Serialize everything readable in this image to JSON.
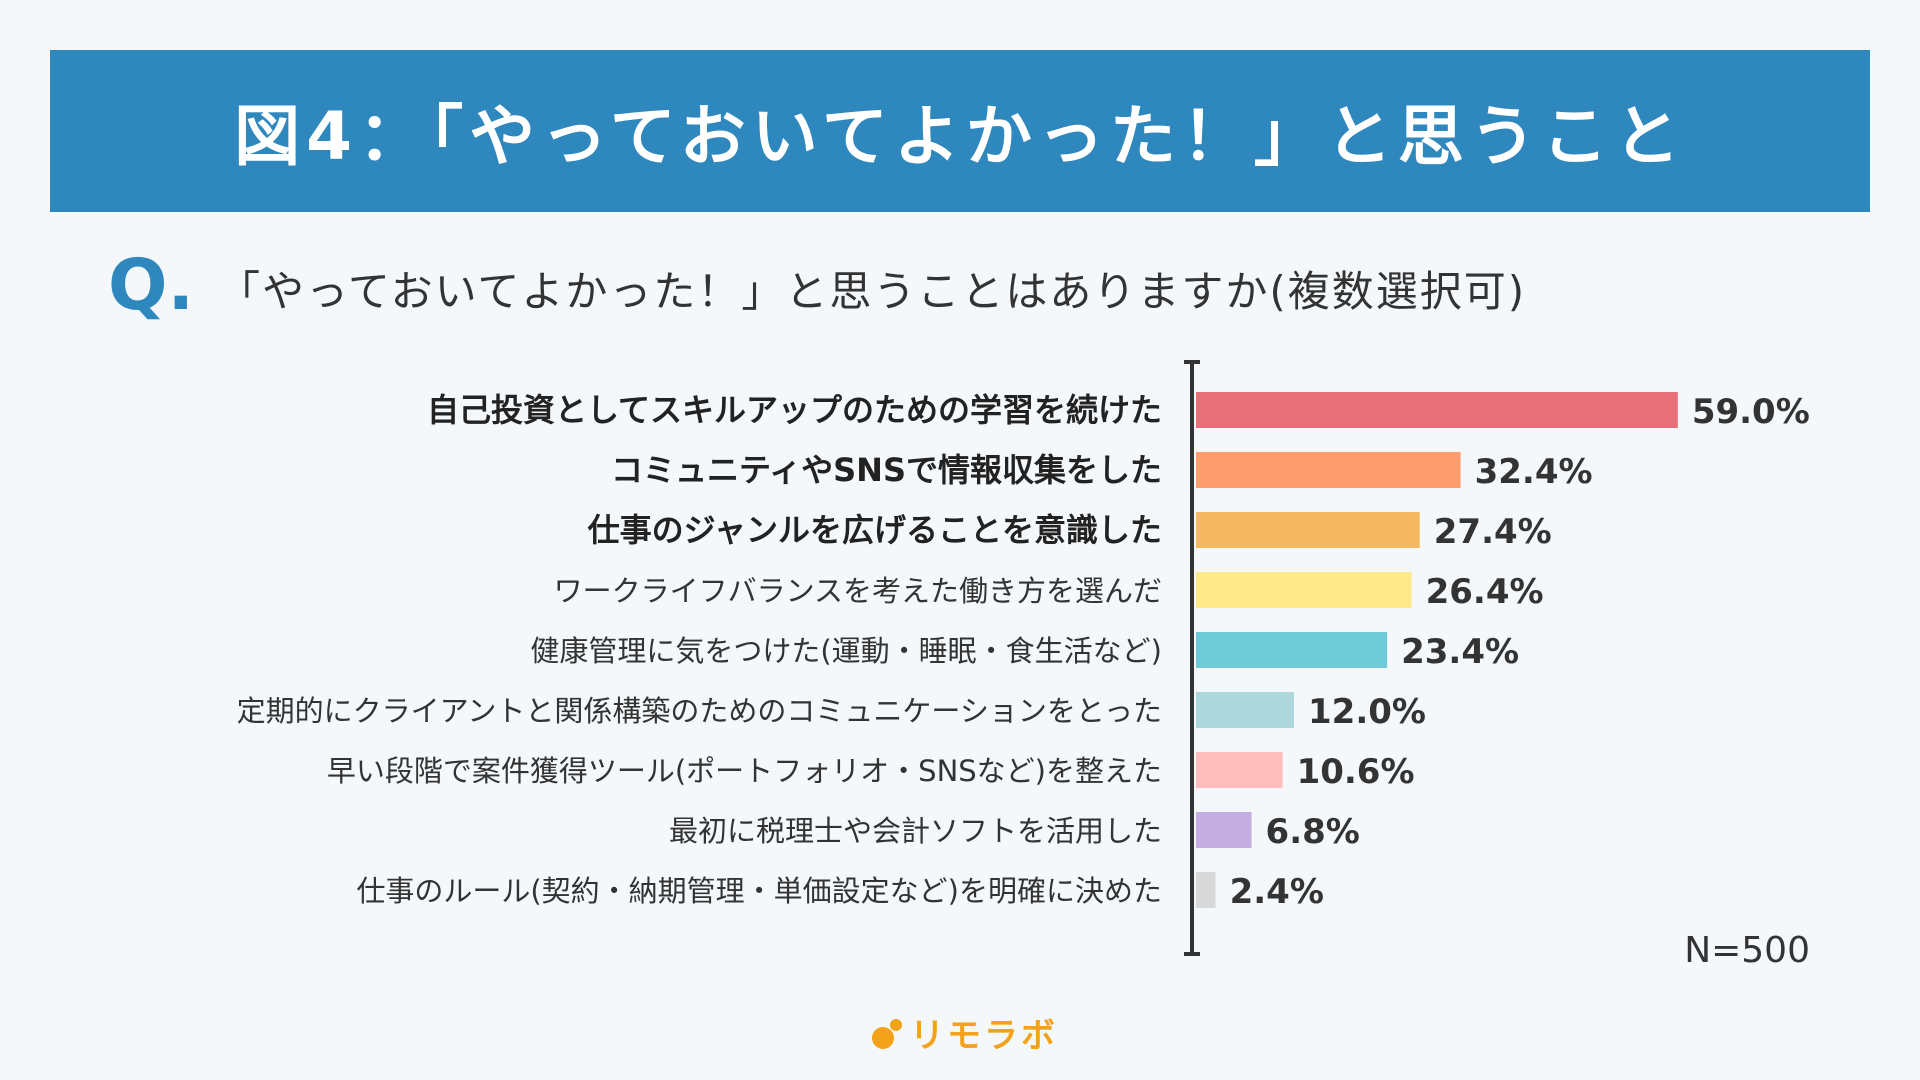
{
  "banner": {
    "title": "図4：「やっておいてよかった！」と思うこと"
  },
  "question": {
    "mark": "Q.",
    "text": "「やっておいてよかった！」と思うことはありますか(複数選択可)"
  },
  "chart_data": {
    "type": "bar",
    "orientation": "horizontal",
    "categories": [
      "自己投資としてスキルアップのための学習を続けた",
      "コミュニティやSNSで情報収集をした",
      "仕事のジャンルを広げることを意識した",
      "ワークライフバランスを考えた働き方を選んだ",
      "健康管理に気をつけた(運動・睡眠・食生活など)",
      "定期的にクライアントと関係構築のためのコミュニケーションをとった",
      "早い段階で案件獲得ツール(ポートフォリオ・SNSなど)を整えた",
      "最初に税理士や会計ソフトを活用した",
      "仕事のルール(契約・納期管理・単価設定など)を明確に決めた"
    ],
    "values": [
      59.0,
      32.4,
      27.4,
      26.4,
      23.4,
      12.0,
      10.6,
      6.8,
      2.4
    ],
    "value_labels": [
      "59.0%",
      "32.4%",
      "27.4%",
      "26.4%",
      "23.4%",
      "12.0%",
      "10.6%",
      "6.8%",
      "2.4%"
    ],
    "colors": [
      "#e8707a",
      "#ff9d6e",
      "#f4b862",
      "#ffe98a",
      "#6dcad6",
      "#aed7dc",
      "#ffbcbc",
      "#c4aee2",
      "#d9d9d9"
    ],
    "bold_categories": [
      0,
      1,
      2
    ],
    "xlim": [
      0,
      60
    ],
    "note": "N=500"
  },
  "logo": {
    "text": "リモラボ"
  }
}
